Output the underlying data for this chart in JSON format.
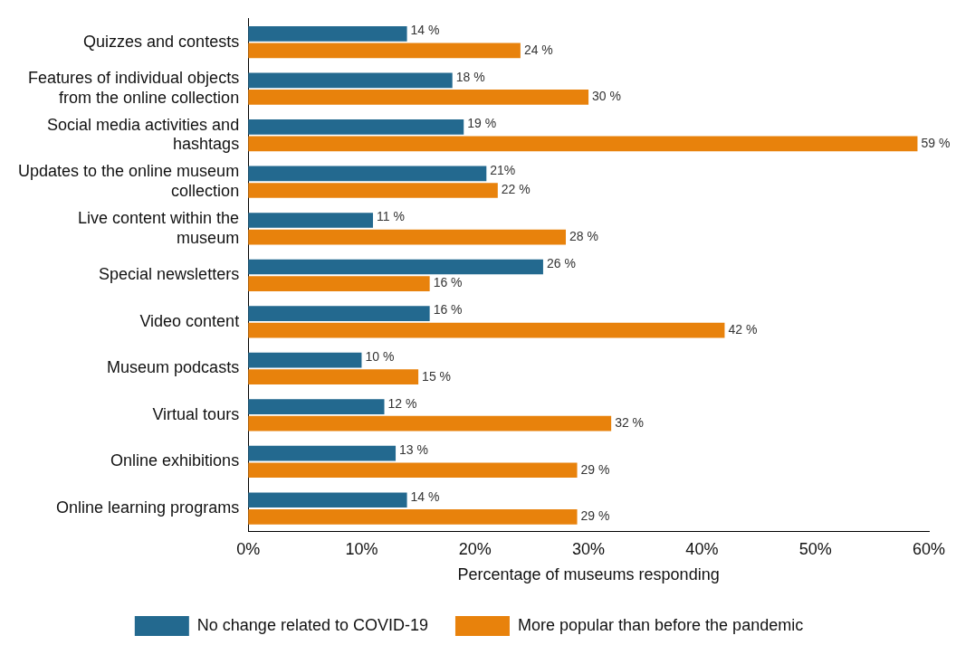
{
  "chart_data": {
    "type": "bar",
    "orientation": "horizontal",
    "categories": [
      "Quizzes and contests",
      "Features of individual objects from the online collection",
      "Social media activities and hashtags",
      "Updates to the online museum collection",
      "Live content within the museum",
      "Special newsletters",
      "Video content",
      "Museum podcasts",
      "Virtual tours",
      "Online exhibitions",
      "Online learning programs"
    ],
    "series": [
      {
        "name": "No change related to COVID-19",
        "color": "#23698f",
        "values": [
          14,
          18,
          19,
          21,
          11,
          26,
          16,
          10,
          12,
          13,
          14
        ],
        "value_labels": [
          "14 %",
          "18 %",
          "19 %",
          "21%",
          "11 %",
          "26 %",
          "16 %",
          "10 %",
          "12 %",
          "13 %",
          "14 %"
        ]
      },
      {
        "name": "More popular than before the pandemic",
        "color": "#e8820c",
        "values": [
          24,
          30,
          59,
          22,
          28,
          16,
          42,
          15,
          32,
          29,
          29
        ],
        "value_labels": [
          "24 %",
          "30 %",
          "59 %",
          "22 %",
          "28 %",
          "16 %",
          "42 %",
          "15 %",
          "32 %",
          "29 %",
          "29 %"
        ]
      }
    ],
    "xlabel": "Percentage of museums responding",
    "xlim": [
      0,
      60
    ],
    "xticks": [
      {
        "value": 0,
        "label": "0%"
      },
      {
        "value": 10,
        "label": "10%"
      },
      {
        "value": 20,
        "label": "20%"
      },
      {
        "value": 30,
        "label": "30%"
      },
      {
        "value": 40,
        "label": "40%"
      },
      {
        "value": 50,
        "label": "50%"
      },
      {
        "value": 60,
        "label": "60%"
      }
    ],
    "grid": false,
    "legend": "bottom"
  }
}
